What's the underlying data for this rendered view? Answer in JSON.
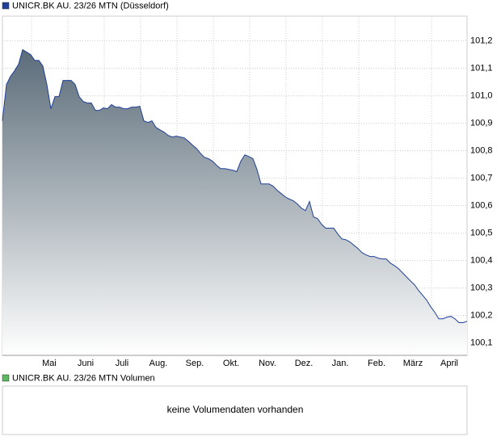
{
  "chart_data": {
    "type": "area",
    "title": "UNICR.BK AU. 23/26 MTN (Düsseldorf)",
    "series": [
      {
        "color": "#1f3f99",
        "values": [
          100.909,
          101.041,
          101.071,
          101.091,
          101.115,
          101.168,
          101.159,
          101.15,
          101.129,
          101.129,
          101.109,
          101.041,
          100.953,
          100.997,
          100.997,
          101.056,
          101.056,
          101.056,
          101.041,
          100.997,
          100.979,
          100.974,
          100.974,
          100.947,
          100.947,
          100.956,
          100.953,
          100.968,
          100.959,
          100.959,
          100.953,
          100.953,
          100.959,
          100.959,
          100.962,
          100.909,
          100.903,
          100.909,
          100.885,
          100.876,
          100.868,
          100.856,
          100.85,
          100.853,
          100.85,
          100.847,
          100.835,
          100.821,
          100.809,
          100.791,
          100.776,
          100.771,
          100.762,
          100.747,
          100.735,
          100.735,
          100.732,
          100.729,
          100.724,
          100.762,
          100.785,
          100.779,
          100.771,
          100.732,
          100.679,
          100.679,
          100.679,
          100.671,
          100.656,
          100.644,
          100.632,
          100.624,
          100.618,
          100.606,
          100.591,
          100.582,
          100.615,
          100.559,
          100.553,
          100.532,
          100.518,
          100.518,
          100.518,
          100.497,
          100.479,
          100.476,
          100.468,
          100.456,
          100.444,
          100.429,
          100.421,
          100.415,
          100.415,
          100.409,
          100.406,
          100.406,
          100.391,
          100.382,
          100.371,
          100.356,
          100.341,
          100.326,
          100.312,
          100.291,
          100.274,
          100.256,
          100.232,
          100.212,
          100.188,
          100.188,
          100.194,
          100.197,
          100.188,
          100.174,
          100.174,
          100.179
        ]
      }
    ],
    "x_axis_labels": [
      "Mai",
      "Juni",
      "Juli",
      "Aug.",
      "Sep.",
      "Okt.",
      "Nov.",
      "Dez.",
      "Jan.",
      "Feb.",
      "März",
      "April"
    ],
    "ylim": [
      100.055,
      101.29
    ],
    "yticks": [
      {
        "value": 100.1,
        "label": "100,1"
      },
      {
        "value": 100.2,
        "label": "100,2"
      },
      {
        "value": 100.3,
        "label": "100,3"
      },
      {
        "value": 100.4,
        "label": "100,4"
      },
      {
        "value": 100.5,
        "label": "100,5"
      },
      {
        "value": 100.6,
        "label": "100,6"
      },
      {
        "value": 100.7,
        "label": "100,7"
      },
      {
        "value": 100.8,
        "label": "100,8"
      },
      {
        "value": 100.9,
        "label": "100,9"
      },
      {
        "value": 101.0,
        "label": "101,0"
      },
      {
        "value": 101.1,
        "label": "101,1"
      },
      {
        "value": 101.2,
        "label": "101,2"
      }
    ],
    "grid": true
  },
  "volume_panel": {
    "title": "UNICR.BK AU. 23/26 MTN Volumen",
    "message": "keine Volumendaten vorhanden",
    "color": "#5cb85c"
  }
}
